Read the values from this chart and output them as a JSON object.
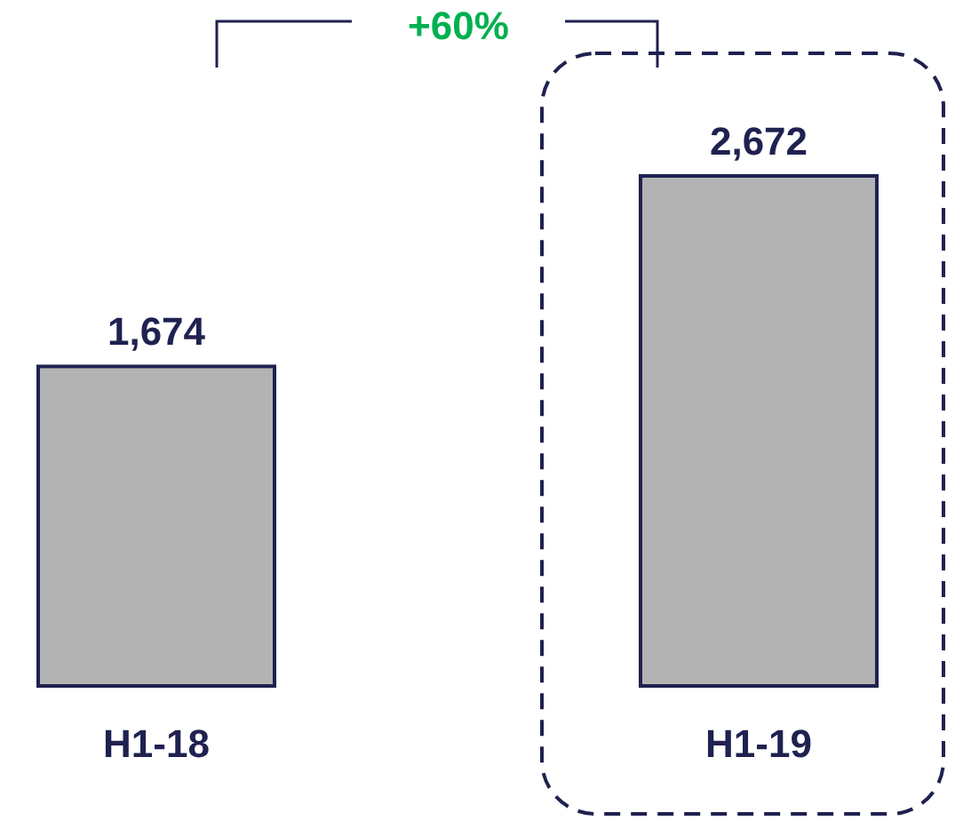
{
  "chart_data": {
    "type": "bar",
    "categories": [
      "H1-18",
      "H1-19"
    ],
    "values": [
      1674,
      2672
    ],
    "color": "#b3b3b3",
    "data_labels": true,
    "value_labels": [
      "1,674",
      "2,672"
    ],
    "annotations": [
      "+60%"
    ]
  }
}
